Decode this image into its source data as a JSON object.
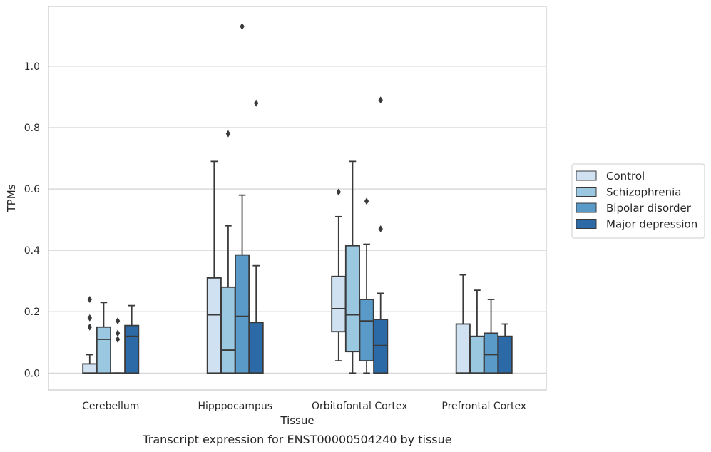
{
  "chart_data": {
    "type": "box",
    "xlabel": "Tissue",
    "ylabel": "TPMs",
    "caption": "Transcript expression for ENST00000504240 by tissue",
    "ylim": [
      -0.055,
      1.195
    ],
    "y_ticks": [
      0.0,
      0.2,
      0.4,
      0.6,
      0.8,
      1.0
    ],
    "y_tick_labels": [
      "0.0",
      "0.2",
      "0.4",
      "0.6",
      "0.8",
      "1.0"
    ],
    "grid": "horizontal",
    "legend_position": "right",
    "categories": [
      "Cerebellum",
      "Hipppocampus",
      "Orbitofontal Cortex",
      "Prefrontal Cortex"
    ],
    "series": [
      {
        "name": "Control",
        "color": "#d0e1f2",
        "boxes": [
          {
            "whislo": 0.0,
            "q1": 0.0,
            "med": 0.0,
            "q3": 0.03,
            "whishi": 0.06,
            "fliers": [
              0.15,
              0.18,
              0.24
            ]
          },
          {
            "whislo": 0.0,
            "q1": 0.0,
            "med": 0.19,
            "q3": 0.31,
            "whishi": 0.69,
            "fliers": []
          },
          {
            "whislo": 0.04,
            "q1": 0.135,
            "med": 0.21,
            "q3": 0.315,
            "whishi": 0.51,
            "fliers": [
              0.59
            ]
          },
          {
            "whislo": 0.0,
            "q1": 0.0,
            "med": 0.0,
            "q3": 0.16,
            "whishi": 0.32,
            "fliers": []
          }
        ]
      },
      {
        "name": "Schizophrenia",
        "color": "#9ac8e0",
        "boxes": [
          {
            "whislo": 0.0,
            "q1": 0.0,
            "med": 0.11,
            "q3": 0.15,
            "whishi": 0.23,
            "fliers": []
          },
          {
            "whislo": 0.0,
            "q1": 0.0,
            "med": 0.075,
            "q3": 0.28,
            "whishi": 0.48,
            "fliers": [
              0.78
            ]
          },
          {
            "whislo": 0.0,
            "q1": 0.07,
            "med": 0.19,
            "q3": 0.415,
            "whishi": 0.69,
            "fliers": []
          },
          {
            "whislo": 0.0,
            "q1": 0.0,
            "med": 0.0,
            "q3": 0.12,
            "whishi": 0.27,
            "fliers": []
          }
        ]
      },
      {
        "name": "Bipolar disorder",
        "color": "#5a9ac8",
        "boxes": [
          {
            "whislo": 0.0,
            "q1": 0.0,
            "med": 0.0,
            "q3": 0.0,
            "whishi": 0.0,
            "fliers": [
              0.11,
              0.13,
              0.17
            ]
          },
          {
            "whislo": 0.0,
            "q1": 0.0,
            "med": 0.185,
            "q3": 0.385,
            "whishi": 0.58,
            "fliers": [
              1.13
            ]
          },
          {
            "whislo": 0.0,
            "q1": 0.04,
            "med": 0.17,
            "q3": 0.24,
            "whishi": 0.42,
            "fliers": [
              0.56
            ]
          },
          {
            "whislo": 0.0,
            "q1": 0.0,
            "med": 0.06,
            "q3": 0.13,
            "whishi": 0.24,
            "fliers": []
          }
        ]
      },
      {
        "name": "Major depression",
        "color": "#2b6aa6",
        "boxes": [
          {
            "whislo": 0.0,
            "q1": 0.0,
            "med": 0.12,
            "q3": 0.155,
            "whishi": 0.22,
            "fliers": []
          },
          {
            "whislo": 0.0,
            "q1": 0.0,
            "med": 0.0,
            "q3": 0.165,
            "whishi": 0.35,
            "fliers": [
              0.88
            ]
          },
          {
            "whislo": 0.0,
            "q1": 0.0,
            "med": 0.09,
            "q3": 0.175,
            "whishi": 0.26,
            "fliers": [
              0.47,
              0.89
            ]
          },
          {
            "whislo": 0.0,
            "q1": 0.0,
            "med": 0.0,
            "q3": 0.12,
            "whishi": 0.16,
            "fliers": []
          }
        ]
      }
    ]
  }
}
